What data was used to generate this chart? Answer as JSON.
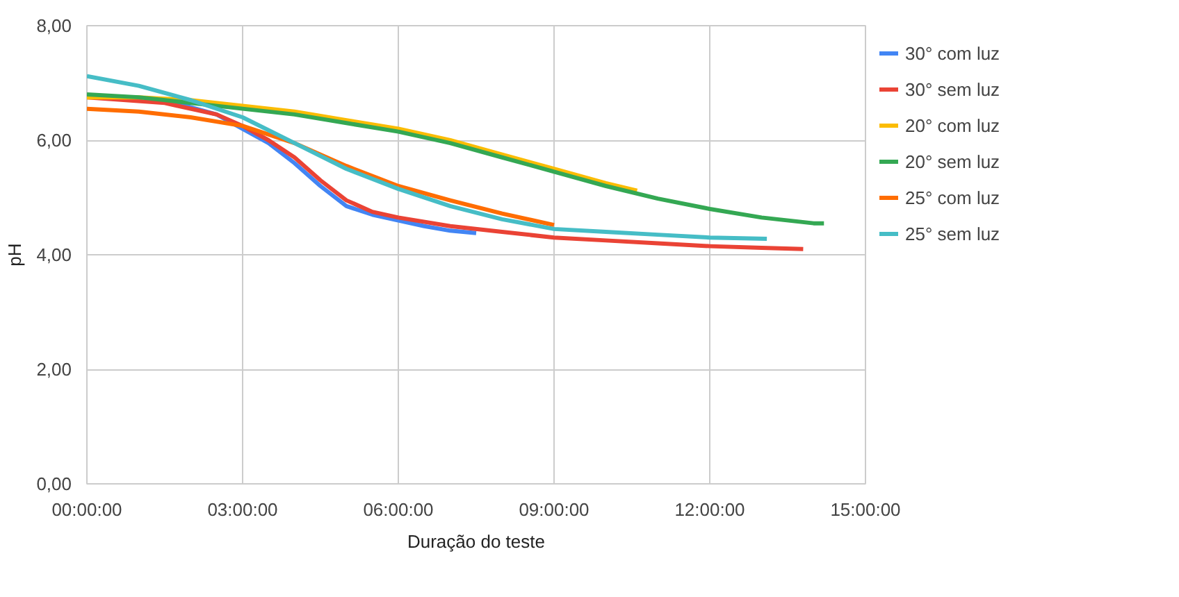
{
  "chart_data": {
    "type": "line",
    "xlabel": "Duração do teste",
    "ylabel": "pH",
    "xlim": [
      0,
      15
    ],
    "xticks": [
      {
        "value": 0,
        "label": "00:00:00"
      },
      {
        "value": 3,
        "label": "03:00:00"
      },
      {
        "value": 6,
        "label": "06:00:00"
      },
      {
        "value": 9,
        "label": "09:00:00"
      },
      {
        "value": 12,
        "label": "12:00:00"
      },
      {
        "value": 15,
        "label": "15:00:00"
      }
    ],
    "ylim": [
      0,
      8
    ],
    "yticks": [
      {
        "value": 0,
        "label": "0,00"
      },
      {
        "value": 2,
        "label": "2,00"
      },
      {
        "value": 4,
        "label": "4,00"
      },
      {
        "value": 6,
        "label": "6,00"
      },
      {
        "value": 8,
        "label": "8,00"
      }
    ],
    "grid": true,
    "legend": "right",
    "marker": "none",
    "line_style": "solid",
    "series": [
      {
        "name": "30° com luz",
        "color": "#4285f4",
        "x": [
          1.5,
          2.5,
          3,
          3.5,
          4,
          4.5,
          5,
          5.5,
          6,
          6.5,
          7,
          7.5
        ],
        "values": [
          6.7,
          6.45,
          6.2,
          5.95,
          5.6,
          5.2,
          4.85,
          4.7,
          4.6,
          4.5,
          4.42,
          4.38
        ]
      },
      {
        "name": "30° sem luz",
        "color": "#ea4335",
        "x": [
          0,
          1.5,
          2.5,
          3,
          3.5,
          4,
          4.5,
          5,
          5.5,
          6,
          7,
          8,
          9,
          10,
          11,
          12,
          13,
          13.8
        ],
        "values": [
          6.75,
          6.65,
          6.45,
          6.25,
          6.0,
          5.7,
          5.3,
          4.95,
          4.75,
          4.65,
          4.5,
          4.4,
          4.3,
          4.25,
          4.2,
          4.15,
          4.12,
          4.1
        ]
      },
      {
        "name": "20° com luz",
        "color": "#fbbc04",
        "x": [
          0,
          1,
          2,
          3,
          4,
          5,
          6,
          7,
          8,
          9,
          10,
          10.6
        ],
        "values": [
          6.75,
          6.75,
          6.7,
          6.6,
          6.5,
          6.35,
          6.2,
          6.0,
          5.75,
          5.5,
          5.25,
          5.12
        ]
      },
      {
        "name": "20° sem luz",
        "color": "#34a853",
        "x": [
          0,
          1,
          2,
          3,
          4,
          5,
          6,
          7,
          8,
          9,
          10,
          11,
          12,
          13,
          14,
          14.2
        ],
        "values": [
          6.8,
          6.75,
          6.65,
          6.55,
          6.45,
          6.3,
          6.15,
          5.95,
          5.7,
          5.45,
          5.2,
          4.98,
          4.8,
          4.65,
          4.55,
          4.55
        ]
      },
      {
        "name": "25° com luz",
        "color": "#ff6d01",
        "x": [
          0,
          1,
          2,
          3,
          4,
          5,
          6,
          7,
          8,
          9
        ],
        "values": [
          6.55,
          6.5,
          6.4,
          6.25,
          5.95,
          5.55,
          5.2,
          4.95,
          4.72,
          4.52
        ]
      },
      {
        "name": "25° sem luz",
        "color": "#46bdc6",
        "x": [
          0,
          1,
          2,
          3,
          4,
          5,
          6,
          7,
          8,
          9,
          10,
          11,
          12,
          13.1
        ],
        "values": [
          7.12,
          6.95,
          6.7,
          6.4,
          5.95,
          5.5,
          5.15,
          4.85,
          4.62,
          4.45,
          4.4,
          4.35,
          4.3,
          4.28
        ]
      }
    ]
  }
}
